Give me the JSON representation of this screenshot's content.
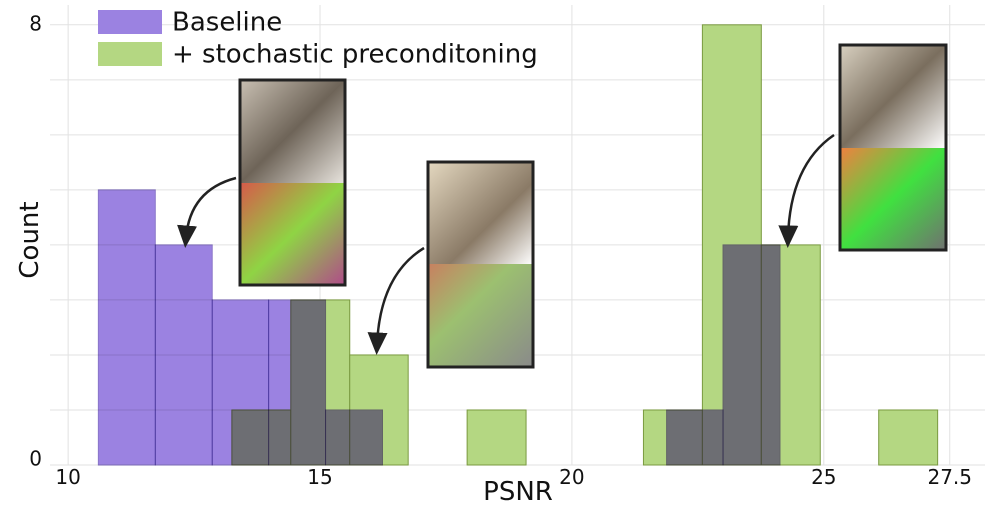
{
  "chart_data": {
    "type": "histogram",
    "xlabel": "PSNR",
    "ylabel": "Count",
    "xlim": [
      9.64,
      28.2
    ],
    "ylim": [
      0,
      8.36
    ],
    "xticks": [
      10,
      15,
      20,
      25,
      27.5
    ],
    "yticks": [
      0,
      8
    ],
    "minor_yticks": [
      1,
      2,
      3,
      4,
      5,
      6,
      7
    ],
    "grid": true,
    "legend": "upper left",
    "series": [
      {
        "name": "Baseline",
        "color": "#9b82e1",
        "bins": [
          10.6,
          11.73,
          12.86,
          13.98,
          15.11,
          16.24,
          17.37,
          18.49,
          19.62,
          20.75,
          21.88,
          23.0,
          24.13
        ],
        "values": [
          5,
          4,
          3,
          3,
          1,
          0,
          0,
          0,
          0,
          0,
          1,
          4
        ]
      },
      {
        "name": "+ stochastic preconditoning",
        "color": "#b4d782",
        "bins": [
          13.25,
          14.42,
          15.59,
          16.75,
          17.92,
          19.09,
          20.26,
          21.42,
          22.59,
          23.76,
          24.93,
          26.09,
          27.26
        ],
        "values": [
          1,
          3,
          2,
          0,
          1,
          0,
          0,
          1,
          8,
          4,
          0,
          1
        ]
      }
    ]
  }
}
